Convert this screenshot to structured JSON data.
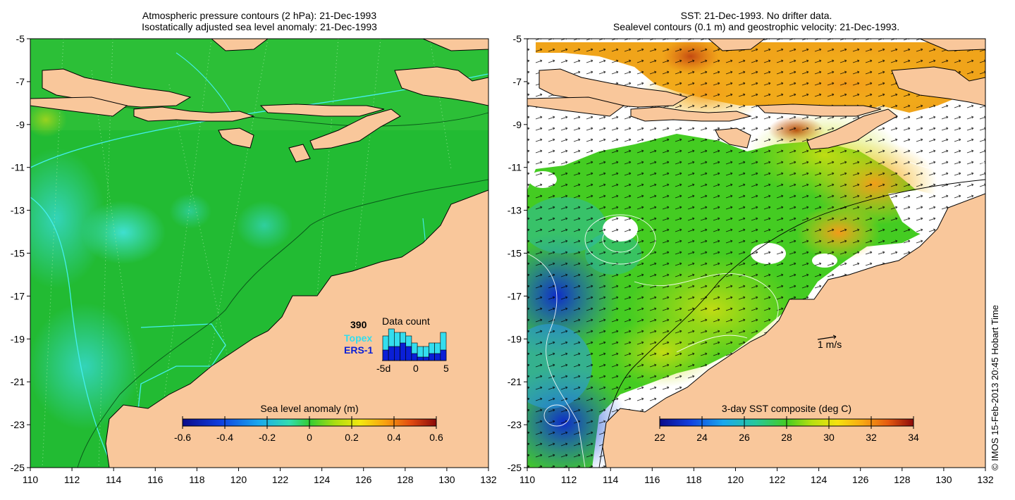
{
  "left_panel": {
    "title_line1": "Atmospheric pressure contours (2 hPa): 21-Dec-1993",
    "title_line2": "Isostatically adjusted sea level anomaly: 21-Dec-1993",
    "colorbar": {
      "title": "Sea level anomaly (m)",
      "ticks": [
        "-0.6",
        "-0.4",
        "-0.2",
        "0",
        "0.2",
        "0.4",
        "0.6"
      ],
      "range": [
        -0.6,
        0.6
      ]
    },
    "data_count": {
      "title": "Data count",
      "total": "390",
      "topex_label": "Topex",
      "ers1_label": "ERS-1",
      "axis_ticks": [
        "-5d",
        "0",
        "5"
      ],
      "topex_counts": [
        7,
        9,
        8,
        8,
        7,
        5,
        4,
        4,
        5,
        5,
        8
      ],
      "ers1_counts": [
        3,
        4,
        4,
        5,
        4,
        2,
        1,
        1,
        2,
        2,
        3
      ],
      "topex_color": "#33ddee",
      "ers1_color": "#0a1fd6"
    }
  },
  "right_panel": {
    "title_line1": "SST: 21-Dec-1993. No drifter data.",
    "title_line2": "Sealevel contours (0.1 m) and geostrophic velocity: 21-Dec-1993.",
    "colorbar": {
      "title": "3-day SST composite (deg C)",
      "ticks": [
        "22",
        "24",
        "26",
        "28",
        "30",
        "32",
        "34"
      ],
      "range": [
        22,
        34
      ]
    },
    "velocity_scale_label": "1 m/s"
  },
  "axes": {
    "lon_ticks": [
      "110",
      "112",
      "114",
      "116",
      "118",
      "120",
      "122",
      "124",
      "126",
      "128",
      "130",
      "132"
    ],
    "lat_ticks": [
      "-5",
      "-7",
      "-9",
      "-11",
      "-13",
      "-15",
      "-17",
      "-19",
      "-21",
      "-23",
      "-25"
    ],
    "lon_range": [
      110,
      132
    ],
    "lat_range": [
      -25,
      -5
    ]
  },
  "credit": "© IMOS 15-Feb-2013 20:45 Hobart Time",
  "colors": {
    "land": "#f9c79b",
    "sea_green": "#22bb33",
    "sea_cyan": "#33ccb0",
    "contour_cyan": "#44eeee"
  }
}
